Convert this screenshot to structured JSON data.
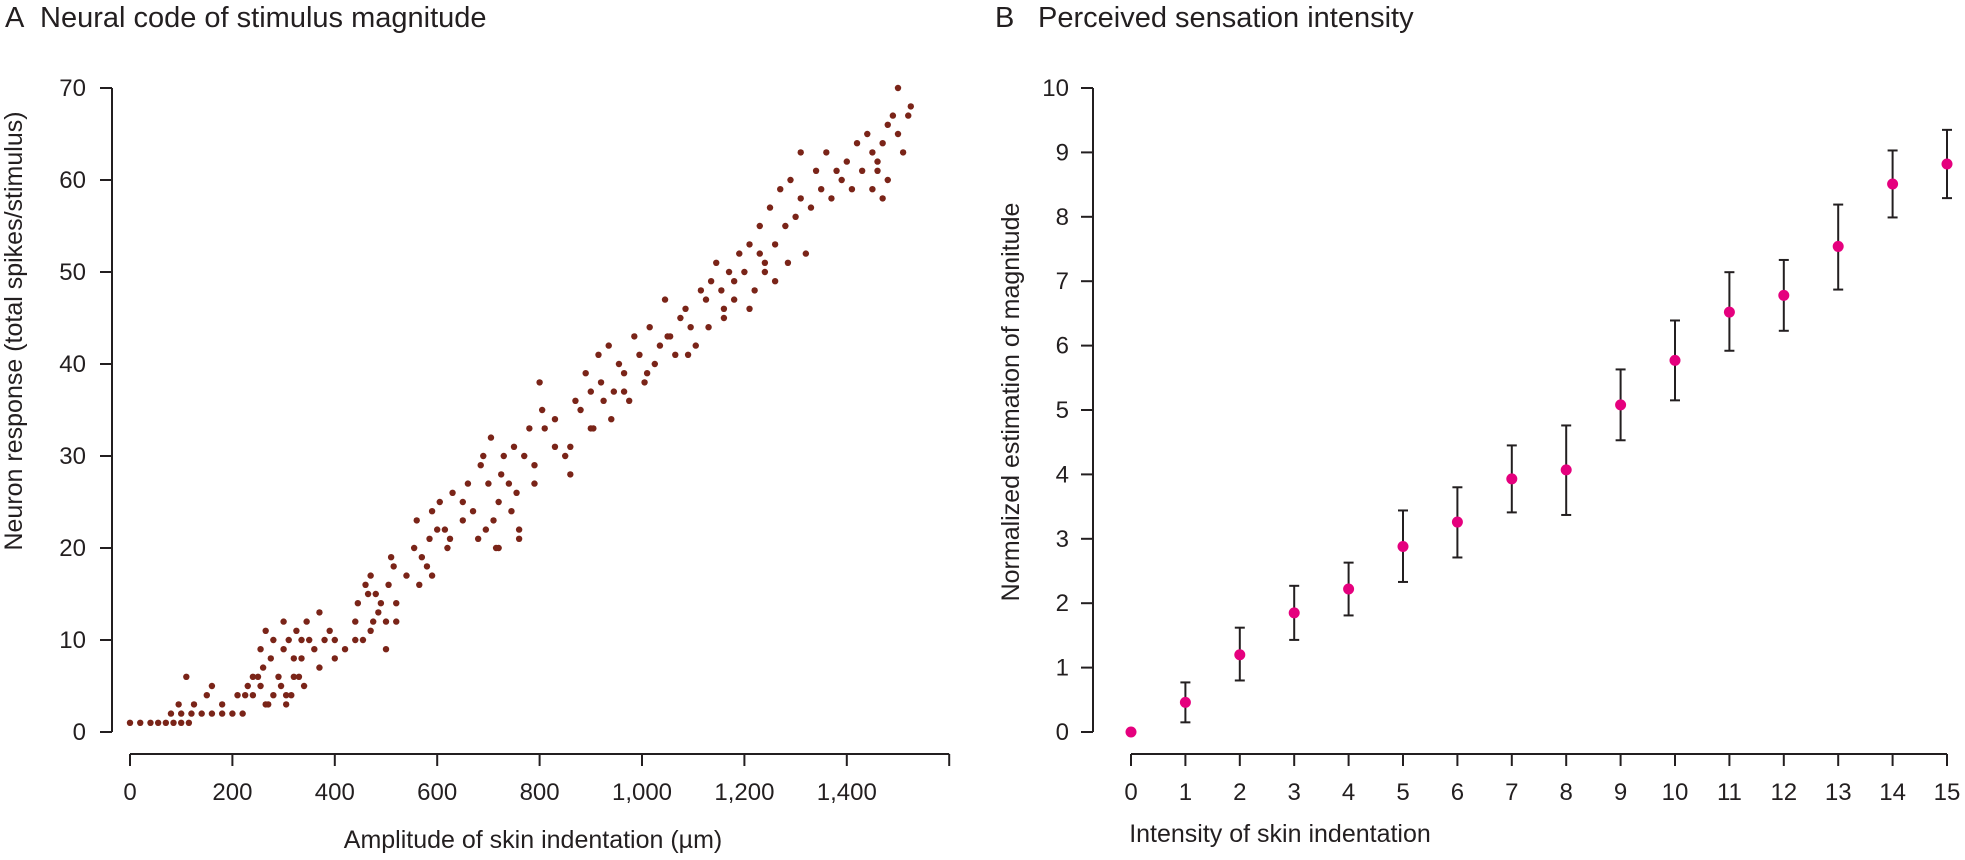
{
  "chart_data": [
    {
      "type": "scatter",
      "panel": "A",
      "title": "Neural code of stimulus magnitude",
      "xlabel": "Amplitude of skin indentation (µm)",
      "ylabel": "Neuron response (total spikes/stimulus)",
      "xlim": [
        0,
        1600
      ],
      "ylim": [
        0,
        70
      ],
      "xticks": [
        0,
        200,
        400,
        600,
        800,
        1000,
        1200,
        1400
      ],
      "xtick_labels": [
        "0",
        "200",
        "400",
        "600",
        "800",
        "1,000",
        "1,200",
        "1,400"
      ],
      "yticks": [
        0,
        10,
        20,
        30,
        40,
        50,
        60,
        70
      ],
      "ytick_labels": [
        "0",
        "10",
        "20",
        "30",
        "40",
        "50",
        "60",
        "70"
      ],
      "color": "#7a2418",
      "grid": false,
      "points": [
        [
          0,
          1
        ],
        [
          20,
          1
        ],
        [
          40,
          1
        ],
        [
          55,
          1
        ],
        [
          70,
          1
        ],
        [
          85,
          1
        ],
        [
          100,
          1
        ],
        [
          115,
          1
        ],
        [
          80,
          2
        ],
        [
          100,
          2
        ],
        [
          120,
          2
        ],
        [
          140,
          2
        ],
        [
          160,
          2
        ],
        [
          180,
          2
        ],
        [
          200,
          2
        ],
        [
          220,
          2
        ],
        [
          95,
          3
        ],
        [
          125,
          3
        ],
        [
          110,
          6
        ],
        [
          150,
          4
        ],
        [
          160,
          5
        ],
        [
          180,
          3
        ],
        [
          210,
          4
        ],
        [
          230,
          5
        ],
        [
          240,
          4
        ],
        [
          250,
          6
        ],
        [
          255,
          5
        ],
        [
          260,
          7
        ],
        [
          265,
          11
        ],
        [
          270,
          3
        ],
        [
          275,
          8
        ],
        [
          280,
          10
        ],
        [
          290,
          6
        ],
        [
          295,
          5
        ],
        [
          300,
          12
        ],
        [
          300,
          9
        ],
        [
          305,
          3
        ],
        [
          310,
          10
        ],
        [
          315,
          4
        ],
        [
          320,
          8
        ],
        [
          325,
          11
        ],
        [
          330,
          6
        ],
        [
          335,
          10
        ],
        [
          340,
          5
        ],
        [
          345,
          12
        ],
        [
          350,
          10
        ],
        [
          360,
          9
        ],
        [
          370,
          13
        ],
        [
          380,
          10
        ],
        [
          390,
          11
        ],
        [
          400,
          10
        ],
        [
          420,
          9
        ],
        [
          440,
          12
        ],
        [
          445,
          14
        ],
        [
          455,
          10
        ],
        [
          460,
          16
        ],
        [
          465,
          15
        ],
        [
          470,
          17
        ],
        [
          475,
          12
        ],
        [
          480,
          15
        ],
        [
          485,
          13
        ],
        [
          490,
          14
        ],
        [
          500,
          12
        ],
        [
          505,
          16
        ],
        [
          510,
          19
        ],
        [
          515,
          18
        ],
        [
          520,
          14
        ],
        [
          540,
          17
        ],
        [
          555,
          20
        ],
        [
          560,
          23
        ],
        [
          570,
          19
        ],
        [
          580,
          18
        ],
        [
          585,
          21
        ],
        [
          590,
          24
        ],
        [
          600,
          22
        ],
        [
          605,
          25
        ],
        [
          615,
          22
        ],
        [
          620,
          20
        ],
        [
          630,
          26
        ],
        [
          650,
          25
        ],
        [
          660,
          27
        ],
        [
          670,
          24
        ],
        [
          680,
          21
        ],
        [
          685,
          29
        ],
        [
          690,
          30
        ],
        [
          700,
          27
        ],
        [
          705,
          32
        ],
        [
          710,
          23
        ],
        [
          715,
          20
        ],
        [
          720,
          25
        ],
        [
          725,
          28
        ],
        [
          730,
          30
        ],
        [
          740,
          27
        ],
        [
          750,
          31
        ],
        [
          755,
          26
        ],
        [
          760,
          22
        ],
        [
          770,
          30
        ],
        [
          780,
          33
        ],
        [
          790,
          29
        ],
        [
          800,
          38
        ],
        [
          805,
          35
        ],
        [
          810,
          33
        ],
        [
          830,
          31
        ],
        [
          850,
          30
        ],
        [
          860,
          28
        ],
        [
          870,
          36
        ],
        [
          880,
          35
        ],
        [
          890,
          39
        ],
        [
          900,
          37
        ],
        [
          905,
          33
        ],
        [
          915,
          41
        ],
        [
          920,
          38
        ],
        [
          925,
          36
        ],
        [
          935,
          42
        ],
        [
          945,
          37
        ],
        [
          955,
          40
        ],
        [
          965,
          39
        ],
        [
          975,
          36
        ],
        [
          985,
          43
        ],
        [
          995,
          41
        ],
        [
          1005,
          38
        ],
        [
          1015,
          44
        ],
        [
          1025,
          40
        ],
        [
          1035,
          42
        ],
        [
          1045,
          47
        ],
        [
          1055,
          43
        ],
        [
          1065,
          41
        ],
        [
          1075,
          45
        ],
        [
          1085,
          46
        ],
        [
          1095,
          44
        ],
        [
          1105,
          42
        ],
        [
          1115,
          48
        ],
        [
          1125,
          47
        ],
        [
          1135,
          49
        ],
        [
          1145,
          51
        ],
        [
          1155,
          48
        ],
        [
          1160,
          46
        ],
        [
          1170,
          50
        ],
        [
          1180,
          49
        ],
        [
          1190,
          52
        ],
        [
          1200,
          50
        ],
        [
          1210,
          53
        ],
        [
          1220,
          48
        ],
        [
          1230,
          55
        ],
        [
          1240,
          51
        ],
        [
          1250,
          57
        ],
        [
          1260,
          53
        ],
        [
          1270,
          59
        ],
        [
          1280,
          55
        ],
        [
          1290,
          60
        ],
        [
          1300,
          56
        ],
        [
          1310,
          58
        ],
        [
          1320,
          52
        ],
        [
          1330,
          57
        ],
        [
          1340,
          61
        ],
        [
          1350,
          59
        ],
        [
          1360,
          63
        ],
        [
          1370,
          58
        ],
        [
          1380,
          61
        ],
        [
          1390,
          60
        ],
        [
          1400,
          62
        ],
        [
          1410,
          59
        ],
        [
          1420,
          64
        ],
        [
          1430,
          61
        ],
        [
          1440,
          65
        ],
        [
          1450,
          63
        ],
        [
          1460,
          62
        ],
        [
          1470,
          64
        ],
        [
          1480,
          66
        ],
        [
          1490,
          67
        ],
        [
          1500,
          65
        ],
        [
          1510,
          63
        ],
        [
          1520,
          67
        ],
        [
          1525,
          68
        ],
        [
          1500,
          70
        ],
        [
          1480,
          60
        ],
        [
          1470,
          58
        ],
        [
          1460,
          61
        ],
        [
          1450,
          59
        ],
        [
          1230,
          52
        ],
        [
          1240,
          50
        ],
        [
          1260,
          49
        ],
        [
          1285,
          51
        ],
        [
          1310,
          63
        ],
        [
          1160,
          45
        ],
        [
          1180,
          47
        ],
        [
          1210,
          46
        ],
        [
          1130,
          44
        ],
        [
          1090,
          41
        ],
        [
          1050,
          43
        ],
        [
          1010,
          39
        ],
        [
          965,
          37
        ],
        [
          940,
          34
        ],
        [
          900,
          33
        ],
        [
          860,
          31
        ],
        [
          830,
          34
        ],
        [
          790,
          27
        ],
        [
          760,
          21
        ],
        [
          745,
          24
        ],
        [
          720,
          20
        ],
        [
          695,
          22
        ],
        [
          650,
          23
        ],
        [
          625,
          21
        ],
        [
          590,
          17
        ],
        [
          565,
          16
        ],
        [
          520,
          12
        ],
        [
          500,
          9
        ],
        [
          470,
          11
        ],
        [
          440,
          10
        ],
        [
          400,
          8
        ],
        [
          370,
          7
        ],
        [
          335,
          8
        ],
        [
          320,
          6
        ],
        [
          305,
          4
        ],
        [
          280,
          4
        ],
        [
          265,
          3
        ],
        [
          240,
          6
        ],
        [
          225,
          4
        ],
        [
          255,
          9
        ]
      ]
    },
    {
      "type": "scatter",
      "panel": "B",
      "title": "Perceived sensation intensity",
      "xlabel": "Intensity of skin indentation",
      "ylabel": "Normalized estimation of magnitude",
      "xlim": [
        0,
        15
      ],
      "ylim": [
        0,
        10
      ],
      "xticks": [
        0,
        1,
        2,
        3,
        4,
        5,
        6,
        7,
        8,
        9,
        10,
        11,
        12,
        13,
        14,
        15
      ],
      "yticks": [
        0,
        1,
        2,
        3,
        4,
        5,
        6,
        7,
        8,
        9,
        10
      ],
      "color": "#e5007e",
      "grid": false,
      "x": [
        0,
        1,
        2,
        3,
        4,
        5,
        6,
        7,
        8,
        9,
        10,
        11,
        12,
        13,
        14,
        15
      ],
      "y": [
        0.0,
        0.46,
        1.2,
        1.85,
        2.22,
        2.88,
        3.26,
        3.93,
        4.07,
        5.08,
        5.77,
        6.52,
        6.78,
        7.54,
        8.51,
        8.82
      ],
      "err_low": [
        0.0,
        0.15,
        0.8,
        1.43,
        1.81,
        2.33,
        2.71,
        3.41,
        3.37,
        4.53,
        5.15,
        5.92,
        6.23,
        6.87,
        7.99,
        8.29
      ],
      "err_high": [
        0.0,
        0.77,
        1.62,
        2.27,
        2.63,
        3.44,
        3.8,
        4.45,
        4.76,
        5.63,
        6.39,
        7.14,
        7.33,
        8.19,
        9.03,
        9.35
      ]
    }
  ],
  "panels": {
    "a": {
      "letter": "A",
      "title": "Neural code of stimulus magnitude"
    },
    "b": {
      "letter": "B",
      "title": "Perceived sensation intensity"
    }
  }
}
